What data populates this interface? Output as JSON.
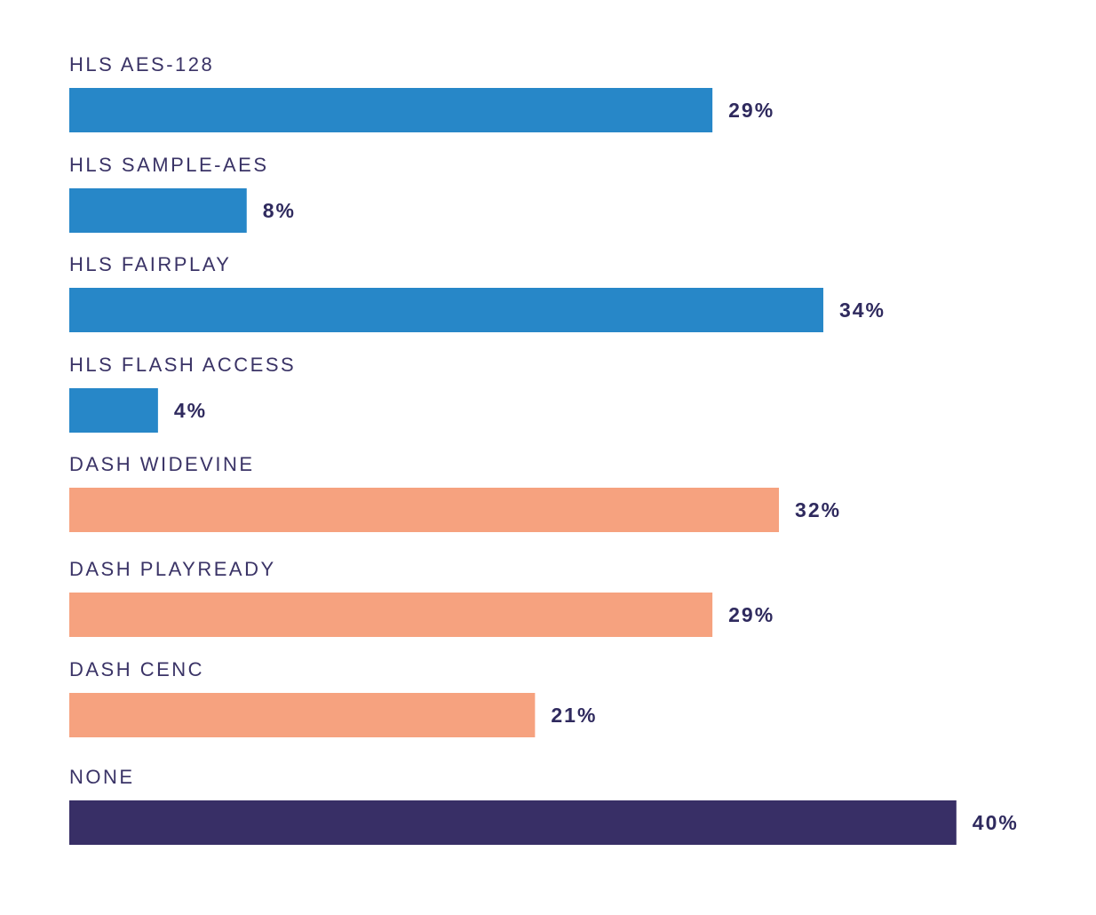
{
  "chart_data": {
    "type": "bar",
    "orientation": "horizontal",
    "categories": [
      "HLS AES-128",
      "HLS SAMPLE-AES",
      "HLS FAIRPLAY",
      "HLS FLASH ACCESS",
      "DASH WIDEVINE",
      "DASH PLAYREADY",
      "DASH CENC",
      "NONE"
    ],
    "values": [
      29,
      8,
      34,
      4,
      32,
      29,
      21,
      40
    ],
    "value_labels": [
      "29%",
      "8%",
      "34%",
      "4%",
      "32%",
      "29%",
      "21%",
      "40%"
    ],
    "groups": [
      "hls",
      "hls",
      "hls",
      "hls",
      "dash",
      "dash",
      "dash",
      "none"
    ],
    "group_colors": {
      "hls": "#2787c8",
      "dash": "#f6a27f",
      "none": "#382f66"
    },
    "title": "",
    "xlabel": "",
    "ylabel": "",
    "xlim": [
      0,
      40
    ],
    "grid": false,
    "legend": "none"
  }
}
